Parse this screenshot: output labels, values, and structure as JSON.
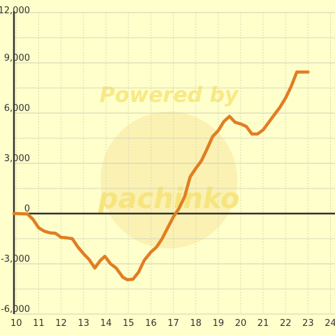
{
  "colors": {
    "background": "#FFFFCC",
    "grid_major": "#CFCFB0",
    "grid_minor": "#D8D8B8",
    "axis": "#333333",
    "series": "#E07E22",
    "watermark": "#F2D84A"
  },
  "watermark": {
    "line1": "Powered by",
    "line2": "pachinko"
  },
  "chart_data": {
    "type": "line",
    "title": "",
    "xlabel": "",
    "ylabel": "",
    "xlim": [
      9.9,
      24.2
    ],
    "ylim": [
      -6000,
      12000
    ],
    "x_ticks": [
      10,
      11,
      12,
      13,
      14,
      15,
      16,
      17,
      18,
      19,
      20,
      21,
      22,
      23,
      24
    ],
    "x_tick_labels": [
      "10",
      "11",
      "12",
      "13",
      "14",
      "15",
      "16",
      "17",
      "18",
      "19",
      "20",
      "21",
      "22",
      "23",
      "24"
    ],
    "y_ticks": [
      -6000,
      -3000,
      0,
      3000,
      6000,
      9000,
      12000
    ],
    "y_tick_labels": [
      "-6,000",
      "-3,000",
      "0",
      "3,000",
      "6,000",
      "9,000",
      "12,000"
    ],
    "grid": true,
    "series": [
      {
        "x": [
          9.9,
          10.5,
          10.75,
          11.0,
          11.25,
          11.5,
          11.75,
          12.0,
          12.25,
          12.5,
          12.75,
          13.0,
          13.25,
          13.5,
          13.75,
          13.95,
          14.2,
          14.45,
          14.75,
          14.95,
          15.2,
          15.45,
          15.7,
          16.0,
          16.25,
          16.5,
          16.75,
          17.0,
          17.25,
          17.5,
          17.75,
          18.0,
          18.25,
          18.5,
          18.75,
          19.0,
          19.25,
          19.5,
          19.75,
          20.0,
          20.25,
          20.5,
          20.75,
          21.0,
          21.25,
          21.5,
          21.75,
          22.0,
          22.25,
          22.5,
          22.75,
          23.0
        ],
        "y": [
          0,
          -20,
          -350,
          -850,
          -1050,
          -1150,
          -1180,
          -1420,
          -1450,
          -1500,
          -2000,
          -2400,
          -2750,
          -3250,
          -2800,
          -2550,
          -3000,
          -3250,
          -3800,
          -3950,
          -3920,
          -3500,
          -2800,
          -2300,
          -2000,
          -1500,
          -850,
          -200,
          300,
          1000,
          2200,
          2700,
          3150,
          3850,
          4600,
          4950,
          5500,
          5800,
          5450,
          5350,
          5200,
          4750,
          4750,
          5000,
          5450,
          5900,
          6350,
          6900,
          7600,
          8450,
          8450,
          8450
        ]
      }
    ]
  }
}
